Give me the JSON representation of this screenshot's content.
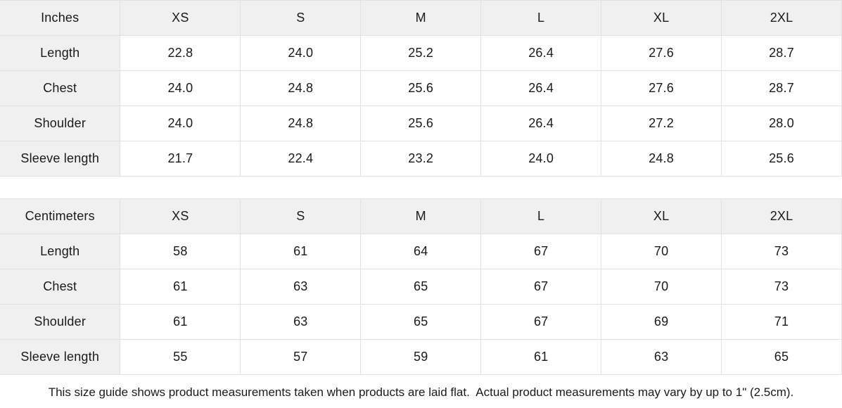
{
  "colors": {
    "header_bg": "#f0f0f0",
    "border": "#e2e2e2",
    "text": "#1a1a1a",
    "page_bg": "#ffffff"
  },
  "tables": [
    {
      "unit_label": "Inches",
      "sizes": [
        "XS",
        "S",
        "M",
        "L",
        "XL",
        "2XL"
      ],
      "rows": [
        {
          "label": "Length",
          "values": [
            "22.8",
            "24.0",
            "25.2",
            "26.4",
            "27.6",
            "28.7"
          ]
        },
        {
          "label": "Chest",
          "values": [
            "24.0",
            "24.8",
            "25.6",
            "26.4",
            "27.6",
            "28.7"
          ]
        },
        {
          "label": "Shoulder",
          "values": [
            "24.0",
            "24.8",
            "25.6",
            "26.4",
            "27.2",
            "28.0"
          ]
        },
        {
          "label": "Sleeve length",
          "values": [
            "21.7",
            "22.4",
            "23.2",
            "24.0",
            "24.8",
            "25.6"
          ]
        }
      ]
    },
    {
      "unit_label": "Centimeters",
      "sizes": [
        "XS",
        "S",
        "M",
        "L",
        "XL",
        "2XL"
      ],
      "rows": [
        {
          "label": "Length",
          "values": [
            "58",
            "61",
            "64",
            "67",
            "70",
            "73"
          ]
        },
        {
          "label": "Chest",
          "values": [
            "61",
            "63",
            "65",
            "67",
            "70",
            "73"
          ]
        },
        {
          "label": "Shoulder",
          "values": [
            "61",
            "63",
            "65",
            "67",
            "69",
            "71"
          ]
        },
        {
          "label": "Sleeve length",
          "values": [
            "55",
            "57",
            "59",
            "61",
            "63",
            "65"
          ]
        }
      ]
    }
  ],
  "footer": {
    "note": "This size guide shows product measurements taken when products are laid flat.  Actual product measurements may vary by up to 1\" (2.5cm)."
  }
}
